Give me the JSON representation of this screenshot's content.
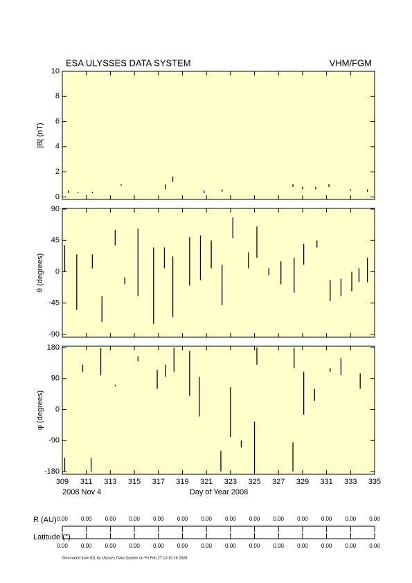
{
  "header": {
    "left": "ESA ULYSSES DATA SYSTEM",
    "right": "VHM/FGM"
  },
  "chart_data": [
    {
      "type": "line",
      "ylabel": "|B| (nT)",
      "color": "#000000",
      "xlim": [
        309,
        335
      ],
      "xticks": [
        309,
        311,
        313,
        315,
        317,
        319,
        321,
        323,
        325,
        327,
        329,
        331,
        333,
        335
      ],
      "ylim": [
        -0.2,
        10
      ],
      "yticks": [
        0,
        2,
        4,
        6,
        8,
        10
      ],
      "x": [
        309.5,
        309.5,
        null,
        310.3,
        310.3,
        null,
        311.5,
        311.5,
        null,
        313.9,
        313.9,
        null,
        317.6,
        317.6,
        null,
        318.2,
        318.2,
        null,
        320.8,
        320.8,
        null,
        322.3,
        322.3,
        null,
        328.2,
        328.2,
        null,
        329.0,
        329.0,
        null,
        330.1,
        330.1,
        null,
        331.2,
        331.2,
        null,
        333.0,
        333.0,
        null,
        334.4,
        334.4
      ],
      "values": [
        0.3,
        0.5,
        null,
        0.3,
        0.4,
        null,
        0.3,
        0.4,
        null,
        0.9,
        1.0,
        null,
        0.6,
        1.0,
        null,
        1.2,
        1.6,
        null,
        0.3,
        0.5,
        null,
        0.4,
        0.6,
        null,
        0.8,
        1.0,
        null,
        0.6,
        0.8,
        null,
        0.6,
        0.8,
        null,
        0.8,
        1.0,
        null,
        0.5,
        0.6,
        null,
        0.4,
        0.6
      ]
    },
    {
      "type": "line",
      "ylabel": "θ (degrees)",
      "color": "#000000",
      "xlim": [
        309,
        335
      ],
      "xticks": [
        309,
        311,
        313,
        315,
        317,
        319,
        321,
        323,
        325,
        327,
        329,
        331,
        333,
        335
      ],
      "ylim": [
        -94,
        91
      ],
      "yticks": [
        -90,
        -45,
        0,
        45,
        90
      ],
      "x": [
        309.2,
        309.2,
        null,
        310.2,
        310.2,
        null,
        311.5,
        311.5,
        null,
        312.3,
        312.3,
        null,
        313.4,
        313.4,
        null,
        314.2,
        314.2,
        null,
        315.3,
        315.3,
        null,
        316.6,
        316.6,
        null,
        317.5,
        317.5,
        null,
        318.2,
        318.2,
        null,
        319.6,
        319.6,
        null,
        320.5,
        320.5,
        null,
        321.4,
        321.4,
        null,
        322.3,
        322.3,
        null,
        323.2,
        323.2,
        null,
        324.5,
        324.5,
        null,
        325.2,
        325.2,
        null,
        326.2,
        326.2,
        null,
        327.2,
        327.2,
        null,
        328.3,
        328.3,
        null,
        329.1,
        329.1,
        null,
        330.2,
        330.2,
        null,
        331.3,
        331.3,
        null,
        332.2,
        332.2,
        null,
        333.1,
        333.1,
        null,
        333.7,
        333.7,
        null,
        334.4,
        334.4
      ],
      "values": [
        0,
        38,
        null,
        -55,
        25,
        null,
        5,
        25,
        null,
        -72,
        -35,
        null,
        38,
        60,
        null,
        -18,
        -8,
        null,
        -35,
        62,
        null,
        -75,
        35,
        null,
        5,
        35,
        null,
        -65,
        22,
        null,
        -20,
        50,
        null,
        -12,
        52,
        null,
        5,
        45,
        null,
        -48,
        10,
        null,
        48,
        78,
        null,
        5,
        28,
        null,
        20,
        65,
        null,
        -5,
        5,
        null,
        -18,
        15,
        null,
        -30,
        20,
        null,
        10,
        40,
        null,
        35,
        45,
        null,
        -42,
        -12,
        null,
        -35,
        -10,
        null,
        -28,
        0,
        null,
        -15,
        5,
        null,
        -15,
        20
      ]
    },
    {
      "type": "line",
      "ylabel": "φ (degrees)",
      "xlabel": "Day of Year 2008",
      "annotation": "2008 Nov  4",
      "color": "#000000",
      "xlim": [
        309,
        335
      ],
      "xticks": [
        309,
        311,
        313,
        315,
        317,
        319,
        321,
        323,
        325,
        327,
        329,
        331,
        333,
        335
      ],
      "ylim": [
        -188,
        184
      ],
      "yticks": [
        -180,
        -90,
        0,
        90,
        180
      ],
      "x": [
        309.2,
        309.2,
        null,
        310.7,
        310.7,
        null,
        311.4,
        311.4,
        null,
        312.2,
        312.2,
        null,
        313.4,
        313.4,
        null,
        315.3,
        315.3,
        null,
        316.9,
        316.9,
        null,
        317.6,
        317.6,
        null,
        318.3,
        318.3,
        null,
        319.6,
        319.6,
        null,
        320.4,
        320.4,
        null,
        322.2,
        322.2,
        null,
        323.0,
        323.0,
        null,
        323.9,
        323.9,
        null,
        325.0,
        325.0,
        null,
        325.2,
        325.2,
        null,
        328.2,
        328.2,
        null,
        328.3,
        328.3,
        null,
        329.1,
        329.1,
        null,
        330.0,
        330.0,
        null,
        331.3,
        331.3,
        null,
        332.2,
        332.2,
        null,
        333.8,
        333.8
      ],
      "values": [
        -180,
        -140,
        null,
        110,
        130,
        null,
        -180,
        -140,
        null,
        100,
        178,
        null,
        68,
        72,
        null,
        140,
        155,
        null,
        60,
        115,
        null,
        95,
        130,
        null,
        110,
        180,
        null,
        40,
        170,
        null,
        -20,
        95,
        null,
        -180,
        -120,
        null,
        -80,
        65,
        null,
        -110,
        -90,
        null,
        -180,
        -35,
        null,
        130,
        180,
        null,
        -180,
        -95,
        null,
        120,
        180,
        null,
        -15,
        110,
        null,
        25,
        60,
        null,
        110,
        120,
        null,
        100,
        150,
        null,
        60,
        105
      ]
    }
  ],
  "ephemeris": {
    "r_label": "R (AU)",
    "r_values": [
      "0.00",
      "0.00",
      "0.00",
      "0.00",
      "0.00",
      "0.00",
      "0.00",
      "0.00",
      "0.00",
      "0.00",
      "0.00",
      "0.00",
      "0.00",
      "0.00"
    ],
    "lat_label": "Latitude (°)",
    "lat_values": [
      "0.00",
      "0.00",
      "0.00",
      "0.00",
      "0.00",
      "0.00",
      "0.00",
      "0.00",
      "0.00",
      "0.00",
      "0.00",
      "0.00",
      "0.00",
      "0.00"
    ]
  },
  "footer": "Generated from IDL by Ulysses Data System on Fri Feb 27 10:10:16 2009"
}
